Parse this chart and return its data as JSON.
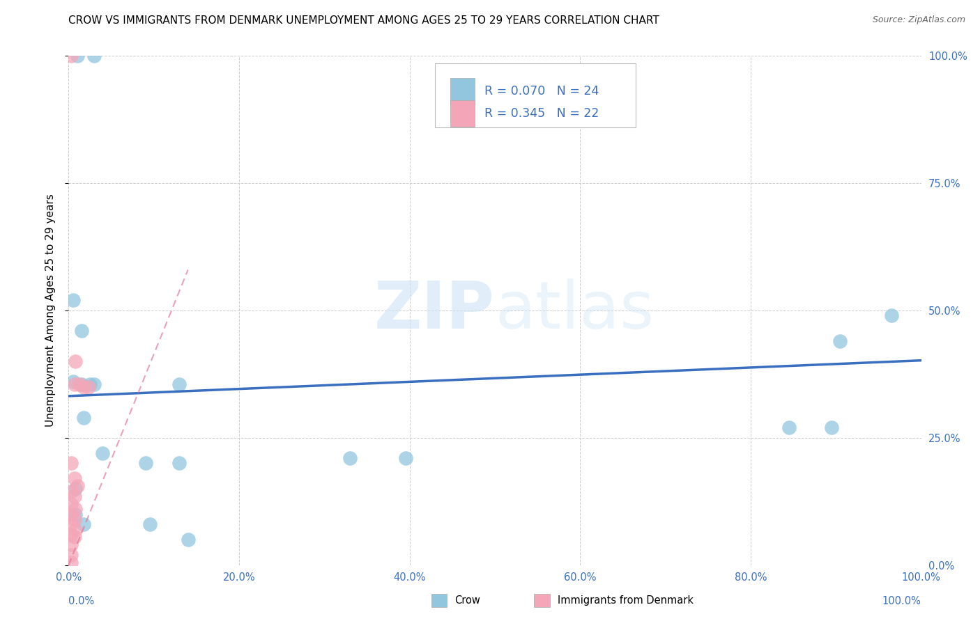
{
  "title": "CROW VS IMMIGRANTS FROM DENMARK UNEMPLOYMENT AMONG AGES 25 TO 29 YEARS CORRELATION CHART",
  "source": "Source: ZipAtlas.com",
  "ylabel": "Unemployment Among Ages 25 to 29 years",
  "legend_label1": "Crow",
  "legend_label2": "Immigrants from Denmark",
  "R1": 0.07,
  "N1": 24,
  "R2": 0.345,
  "N2": 22,
  "blue_color": "#92c5de",
  "pink_color": "#f4a6b8",
  "trend_blue": "#3a6fbf",
  "trend_pink": "#e07090",
  "watermark_zip": "ZIP",
  "watermark_atlas": "atlas",
  "blue_points": [
    [
      0.01,
      1.0
    ],
    [
      0.03,
      1.0
    ],
    [
      0.005,
      0.52
    ],
    [
      0.015,
      0.46
    ],
    [
      0.005,
      0.36
    ],
    [
      0.015,
      0.355
    ],
    [
      0.025,
      0.355
    ],
    [
      0.03,
      0.355
    ],
    [
      0.13,
      0.355
    ],
    [
      0.018,
      0.29
    ],
    [
      0.04,
      0.22
    ],
    [
      0.09,
      0.2
    ],
    [
      0.13,
      0.2
    ],
    [
      0.33,
      0.21
    ],
    [
      0.395,
      0.21
    ],
    [
      0.845,
      0.27
    ],
    [
      0.895,
      0.27
    ],
    [
      0.905,
      0.44
    ],
    [
      0.965,
      0.49
    ],
    [
      0.008,
      0.15
    ],
    [
      0.008,
      0.1
    ],
    [
      0.018,
      0.08
    ],
    [
      0.095,
      0.08
    ],
    [
      0.14,
      0.05
    ]
  ],
  "pink_points": [
    [
      0.003,
      1.0
    ],
    [
      0.008,
      0.4
    ],
    [
      0.007,
      0.355
    ],
    [
      0.013,
      0.355
    ],
    [
      0.018,
      0.35
    ],
    [
      0.023,
      0.35
    ],
    [
      0.003,
      0.2
    ],
    [
      0.007,
      0.17
    ],
    [
      0.01,
      0.155
    ],
    [
      0.003,
      0.145
    ],
    [
      0.007,
      0.135
    ],
    [
      0.003,
      0.12
    ],
    [
      0.008,
      0.11
    ],
    [
      0.003,
      0.1
    ],
    [
      0.007,
      0.09
    ],
    [
      0.003,
      0.08
    ],
    [
      0.008,
      0.07
    ],
    [
      0.003,
      0.06
    ],
    [
      0.007,
      0.055
    ],
    [
      0.003,
      0.04
    ],
    [
      0.003,
      0.02
    ],
    [
      0.003,
      0.005
    ]
  ],
  "xlim": [
    0.0,
    1.0
  ],
  "ylim": [
    0.0,
    1.0
  ],
  "x_ticks": [
    0.0,
    0.2,
    0.4,
    0.6,
    0.8,
    1.0
  ],
  "x_tick_labels": [
    "0.0%",
    "20.0%",
    "40.0%",
    "60.0%",
    "80.0%",
    "100.0%"
  ],
  "y_ticks": [
    0.0,
    0.25,
    0.5,
    0.75,
    1.0
  ],
  "y_tick_labels": [
    "0.0%",
    "25.0%",
    "50.0%",
    "75.0%",
    "100.0%"
  ],
  "blue_trend_x": [
    0.0,
    1.0
  ],
  "blue_trend_y": [
    0.332,
    0.402
  ],
  "pink_trend_x": [
    0.0,
    0.14
  ],
  "pink_trend_y": [
    0.0,
    0.58
  ]
}
